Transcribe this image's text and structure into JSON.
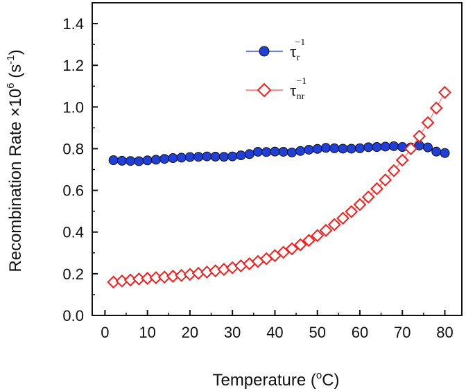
{
  "chart_data": {
    "type": "scatter",
    "xlabel": "Temperature (",
    "xlabel_sup": "o",
    "xlabel_tail": "C)",
    "ylabel": "Recombination Rate ×10",
    "ylabel_sup": "6",
    "ylabel_tail": " (s",
    "ylabel_sup2": "-1",
    "ylabel_end": ")",
    "xlim": [
      -3,
      84
    ],
    "ylim": [
      0,
      1.5
    ],
    "xticks": [
      "0",
      "10",
      "20",
      "30",
      "40",
      "50",
      "60",
      "70",
      "80"
    ],
    "yticks": [
      "0.0",
      "0.2",
      "0.4",
      "0.6",
      "0.8",
      "1.0",
      "1.2",
      "1.4"
    ],
    "legend_position": "top-center",
    "grid": false,
    "series": [
      {
        "name": "τ",
        "name_sub": "r",
        "name_sup": "−1",
        "color": "#1f3fd6",
        "marker": "filled-circle",
        "x": [
          2,
          4,
          6,
          8,
          10,
          12,
          14,
          16,
          18,
          20,
          22,
          24,
          26,
          28,
          30,
          32,
          34,
          36,
          38,
          40,
          42,
          44,
          46,
          48,
          50,
          52,
          54,
          56,
          58,
          60,
          62,
          64,
          66,
          68,
          70,
          72,
          74,
          76,
          78,
          80
        ],
        "y": [
          0.745,
          0.742,
          0.741,
          0.74,
          0.744,
          0.747,
          0.751,
          0.755,
          0.757,
          0.76,
          0.761,
          0.763,
          0.762,
          0.761,
          0.763,
          0.768,
          0.774,
          0.785,
          0.784,
          0.786,
          0.785,
          0.782,
          0.789,
          0.795,
          0.799,
          0.804,
          0.802,
          0.8,
          0.8,
          0.802,
          0.807,
          0.808,
          0.81,
          0.812,
          0.808,
          0.806,
          0.815,
          0.806,
          0.786,
          0.779
        ]
      },
      {
        "name": "τ",
        "name_sub": "nr",
        "name_sup": "−1",
        "color": "#ff1a1a",
        "marker": "open-diamond",
        "x": [
          2,
          4,
          6,
          8,
          10,
          12,
          14,
          16,
          18,
          20,
          22,
          24,
          26,
          28,
          30,
          32,
          34,
          36,
          38,
          40,
          42,
          44,
          46,
          48,
          50,
          52,
          54,
          56,
          58,
          60,
          62,
          64,
          66,
          68,
          70,
          72,
          74,
          76,
          78,
          80
        ],
        "y": [
          0.16,
          0.165,
          0.17,
          0.175,
          0.178,
          0.181,
          0.184,
          0.188,
          0.192,
          0.197,
          0.202,
          0.208,
          0.214,
          0.221,
          0.229,
          0.238,
          0.248,
          0.259,
          0.272,
          0.287,
          0.303,
          0.32,
          0.339,
          0.36,
          0.383,
          0.408,
          0.436,
          0.466,
          0.498,
          0.532,
          0.568,
          0.608,
          0.65,
          0.695,
          0.745,
          0.8,
          0.86,
          0.925,
          0.995,
          1.07
        ]
      }
    ]
  }
}
